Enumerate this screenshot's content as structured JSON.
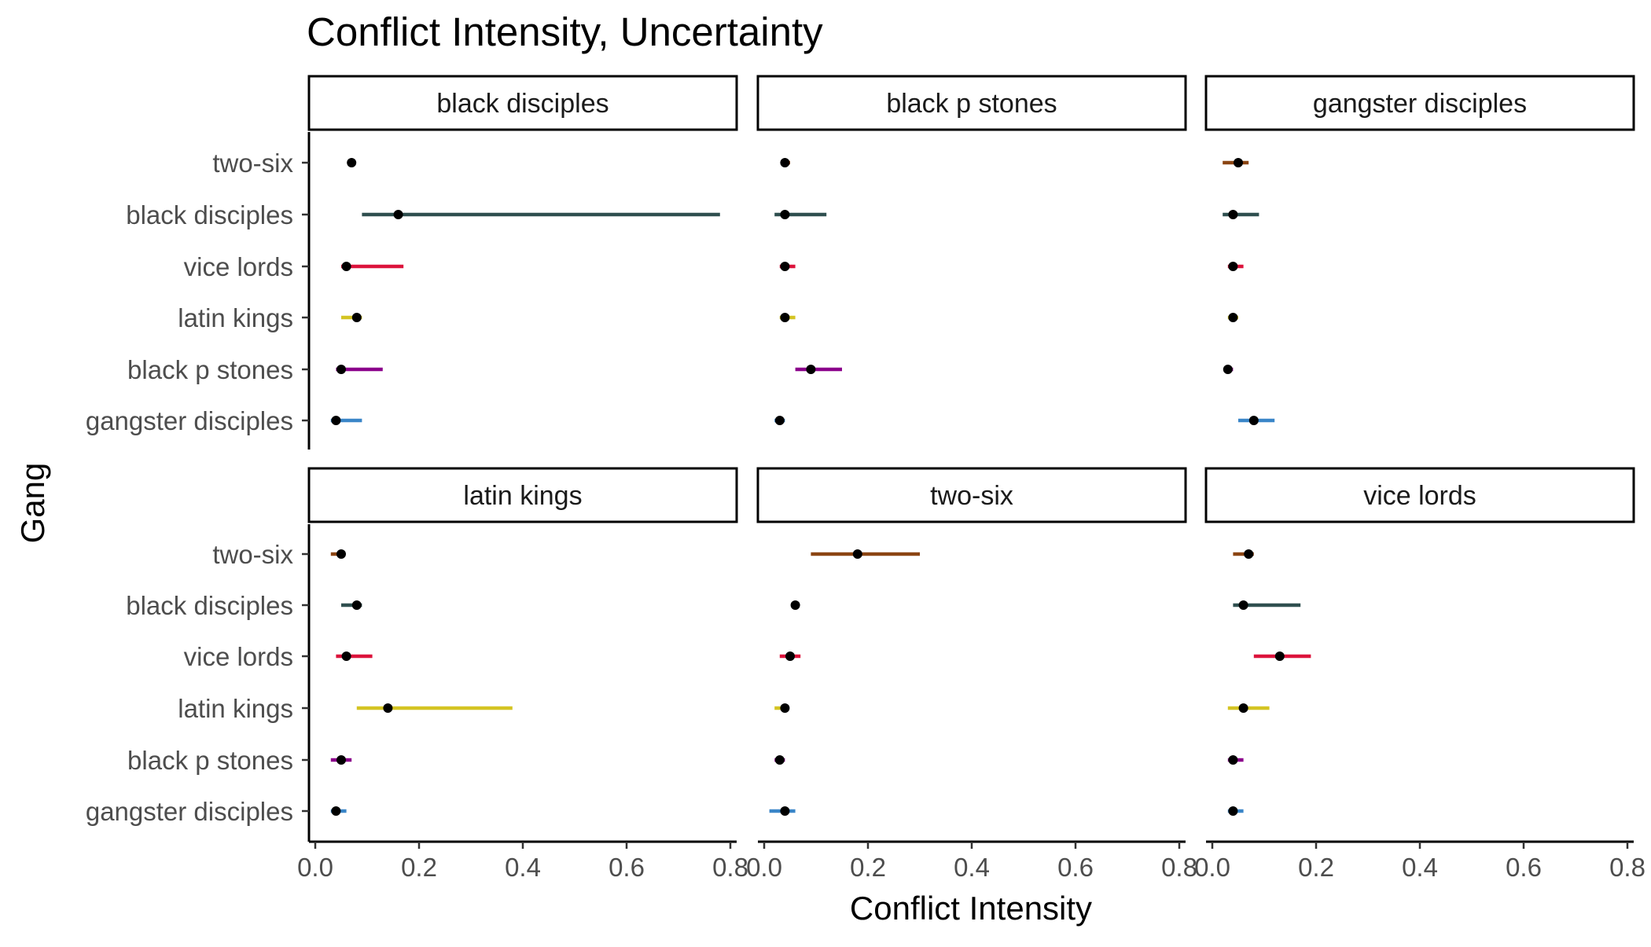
{
  "chart_data": {
    "type": "forest-facets",
    "title": "Conflict Intensity, Uncertainty",
    "xlabel": "Conflict Intensity",
    "ylabel": "Gang",
    "xlim": [
      0,
      0.8
    ],
    "x_ticks": [
      "0.0",
      "0.2",
      "0.4",
      "0.6",
      "0.8"
    ],
    "categories": [
      "two-six",
      "black disciples",
      "vice lords",
      "latin kings",
      "black p stones",
      "gangster disciples"
    ],
    "category_colors": {
      "two-six": "#8B4513",
      "black disciples": "#2F4F4F",
      "vice lords": "#DC143C",
      "latin kings": "#D4C423",
      "black p stones": "#8B008B",
      "gangster disciples": "#3A86C8"
    },
    "grid": false,
    "legend": "none",
    "facets": [
      {
        "name": "black disciples",
        "points": [
          {
            "gang": "two-six",
            "mean": 0.07,
            "lo": 0.07,
            "hi": 0.07
          },
          {
            "gang": "black disciples",
            "mean": 0.16,
            "lo": 0.09,
            "hi": 0.78
          },
          {
            "gang": "vice lords",
            "mean": 0.06,
            "lo": 0.05,
            "hi": 0.17
          },
          {
            "gang": "latin kings",
            "mean": 0.08,
            "lo": 0.05,
            "hi": 0.09
          },
          {
            "gang": "black p stones",
            "mean": 0.05,
            "lo": 0.04,
            "hi": 0.13
          },
          {
            "gang": "gangster disciples",
            "mean": 0.04,
            "lo": 0.03,
            "hi": 0.09
          }
        ]
      },
      {
        "name": "black p stones",
        "points": [
          {
            "gang": "two-six",
            "mean": 0.04,
            "lo": 0.04,
            "hi": 0.05
          },
          {
            "gang": "black disciples",
            "mean": 0.04,
            "lo": 0.02,
            "hi": 0.12
          },
          {
            "gang": "vice lords",
            "mean": 0.04,
            "lo": 0.03,
            "hi": 0.06
          },
          {
            "gang": "latin kings",
            "mean": 0.04,
            "lo": 0.03,
            "hi": 0.06
          },
          {
            "gang": "black p stones",
            "mean": 0.09,
            "lo": 0.06,
            "hi": 0.15
          },
          {
            "gang": "gangster disciples",
            "mean": 0.03,
            "lo": 0.02,
            "hi": 0.04
          }
        ]
      },
      {
        "name": "gangster disciples",
        "points": [
          {
            "gang": "two-six",
            "mean": 0.05,
            "lo": 0.02,
            "hi": 0.07
          },
          {
            "gang": "black disciples",
            "mean": 0.04,
            "lo": 0.02,
            "hi": 0.09
          },
          {
            "gang": "vice lords",
            "mean": 0.04,
            "lo": 0.03,
            "hi": 0.06
          },
          {
            "gang": "latin kings",
            "mean": 0.04,
            "lo": 0.03,
            "hi": 0.05
          },
          {
            "gang": "black p stones",
            "mean": 0.03,
            "lo": 0.03,
            "hi": 0.04
          },
          {
            "gang": "gangster disciples",
            "mean": 0.08,
            "lo": 0.05,
            "hi": 0.12
          }
        ]
      },
      {
        "name": "latin kings",
        "points": [
          {
            "gang": "two-six",
            "mean": 0.05,
            "lo": 0.03,
            "hi": 0.05
          },
          {
            "gang": "black disciples",
            "mean": 0.08,
            "lo": 0.05,
            "hi": 0.09
          },
          {
            "gang": "vice lords",
            "mean": 0.06,
            "lo": 0.04,
            "hi": 0.11
          },
          {
            "gang": "latin kings",
            "mean": 0.14,
            "lo": 0.08,
            "hi": 0.38
          },
          {
            "gang": "black p stones",
            "mean": 0.05,
            "lo": 0.03,
            "hi": 0.07
          },
          {
            "gang": "gangster disciples",
            "mean": 0.04,
            "lo": 0.03,
            "hi": 0.06
          }
        ]
      },
      {
        "name": "two-six",
        "points": [
          {
            "gang": "two-six",
            "mean": 0.18,
            "lo": 0.09,
            "hi": 0.3
          },
          {
            "gang": "black disciples",
            "mean": 0.06,
            "lo": 0.06,
            "hi": 0.06
          },
          {
            "gang": "vice lords",
            "mean": 0.05,
            "lo": 0.03,
            "hi": 0.07
          },
          {
            "gang": "latin kings",
            "mean": 0.04,
            "lo": 0.02,
            "hi": 0.04
          },
          {
            "gang": "black p stones",
            "mean": 0.03,
            "lo": 0.02,
            "hi": 0.04
          },
          {
            "gang": "gangster disciples",
            "mean": 0.04,
            "lo": 0.01,
            "hi": 0.06
          }
        ]
      },
      {
        "name": "vice lords",
        "points": [
          {
            "gang": "two-six",
            "mean": 0.07,
            "lo": 0.04,
            "hi": 0.08
          },
          {
            "gang": "black disciples",
            "mean": 0.06,
            "lo": 0.04,
            "hi": 0.17
          },
          {
            "gang": "vice lords",
            "mean": 0.13,
            "lo": 0.08,
            "hi": 0.19
          },
          {
            "gang": "latin kings",
            "mean": 0.06,
            "lo": 0.03,
            "hi": 0.11
          },
          {
            "gang": "black p stones",
            "mean": 0.04,
            "lo": 0.03,
            "hi": 0.06
          },
          {
            "gang": "gangster disciples",
            "mean": 0.04,
            "lo": 0.03,
            "hi": 0.06
          }
        ]
      }
    ]
  }
}
